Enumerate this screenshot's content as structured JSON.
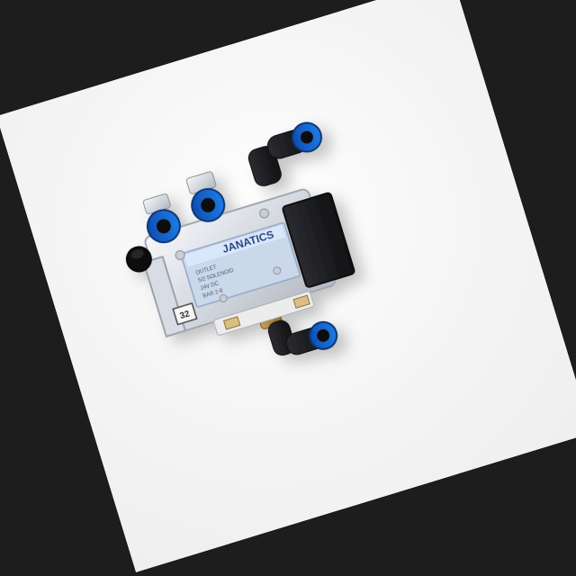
{
  "image": {
    "brand_label": "JANATICS",
    "small_badge": "32",
    "label_lines": [
      "OUTLET",
      "5/2 SOLENOID",
      "24V DC",
      "BAR 2-8"
    ]
  }
}
